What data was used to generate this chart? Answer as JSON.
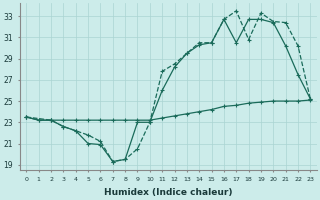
{
  "xlabel": "Humidex (Indice chaleur)",
  "background_color": "#ccecea",
  "grid_color": "#aad4d2",
  "line_color": "#1a6b5a",
  "xlim": [
    -0.5,
    23.5
  ],
  "ylim": [
    18.5,
    34.2
  ],
  "yticks": [
    19,
    21,
    23,
    25,
    27,
    29,
    31,
    33
  ],
  "xticks": [
    0,
    1,
    2,
    3,
    4,
    5,
    6,
    7,
    8,
    9,
    10,
    11,
    12,
    13,
    14,
    15,
    16,
    17,
    18,
    19,
    20,
    21,
    22,
    23
  ],
  "series1_x": [
    0,
    1,
    2,
    3,
    4,
    5,
    6,
    7,
    8,
    9,
    10,
    11,
    12,
    13,
    14,
    15,
    16,
    17,
    18,
    19,
    20,
    21,
    22,
    23
  ],
  "series1_y": [
    23.5,
    23.2,
    23.2,
    23.2,
    23.2,
    23.2,
    23.2,
    23.2,
    23.2,
    23.2,
    23.2,
    23.4,
    23.6,
    23.8,
    24.0,
    24.2,
    24.5,
    24.6,
    24.8,
    24.9,
    25.0,
    25.0,
    25.0,
    25.1
  ],
  "series2_x": [
    0,
    1,
    2,
    3,
    4,
    5,
    6,
    7,
    8,
    9,
    10,
    11,
    12,
    13,
    14,
    15,
    16,
    17,
    18,
    19,
    20,
    21,
    22,
    23
  ],
  "series2_y": [
    23.5,
    23.2,
    23.2,
    22.6,
    22.2,
    21.0,
    20.9,
    19.3,
    19.5,
    23.0,
    23.0,
    26.0,
    28.2,
    29.5,
    30.3,
    30.5,
    32.7,
    30.5,
    32.7,
    32.7,
    32.4,
    30.2,
    27.5,
    25.2
  ],
  "series3_x": [
    0,
    2,
    3,
    4,
    5,
    6,
    7,
    8,
    9,
    10,
    11,
    12,
    13,
    14,
    15,
    16,
    17,
    18,
    19,
    20,
    21,
    22,
    23
  ],
  "series3_y": [
    23.5,
    23.2,
    22.6,
    22.2,
    21.8,
    21.2,
    19.3,
    19.5,
    20.5,
    23.0,
    27.8,
    28.5,
    29.5,
    30.5,
    30.5,
    32.7,
    33.5,
    30.8,
    33.3,
    32.5,
    32.4,
    30.2,
    25.2
  ]
}
